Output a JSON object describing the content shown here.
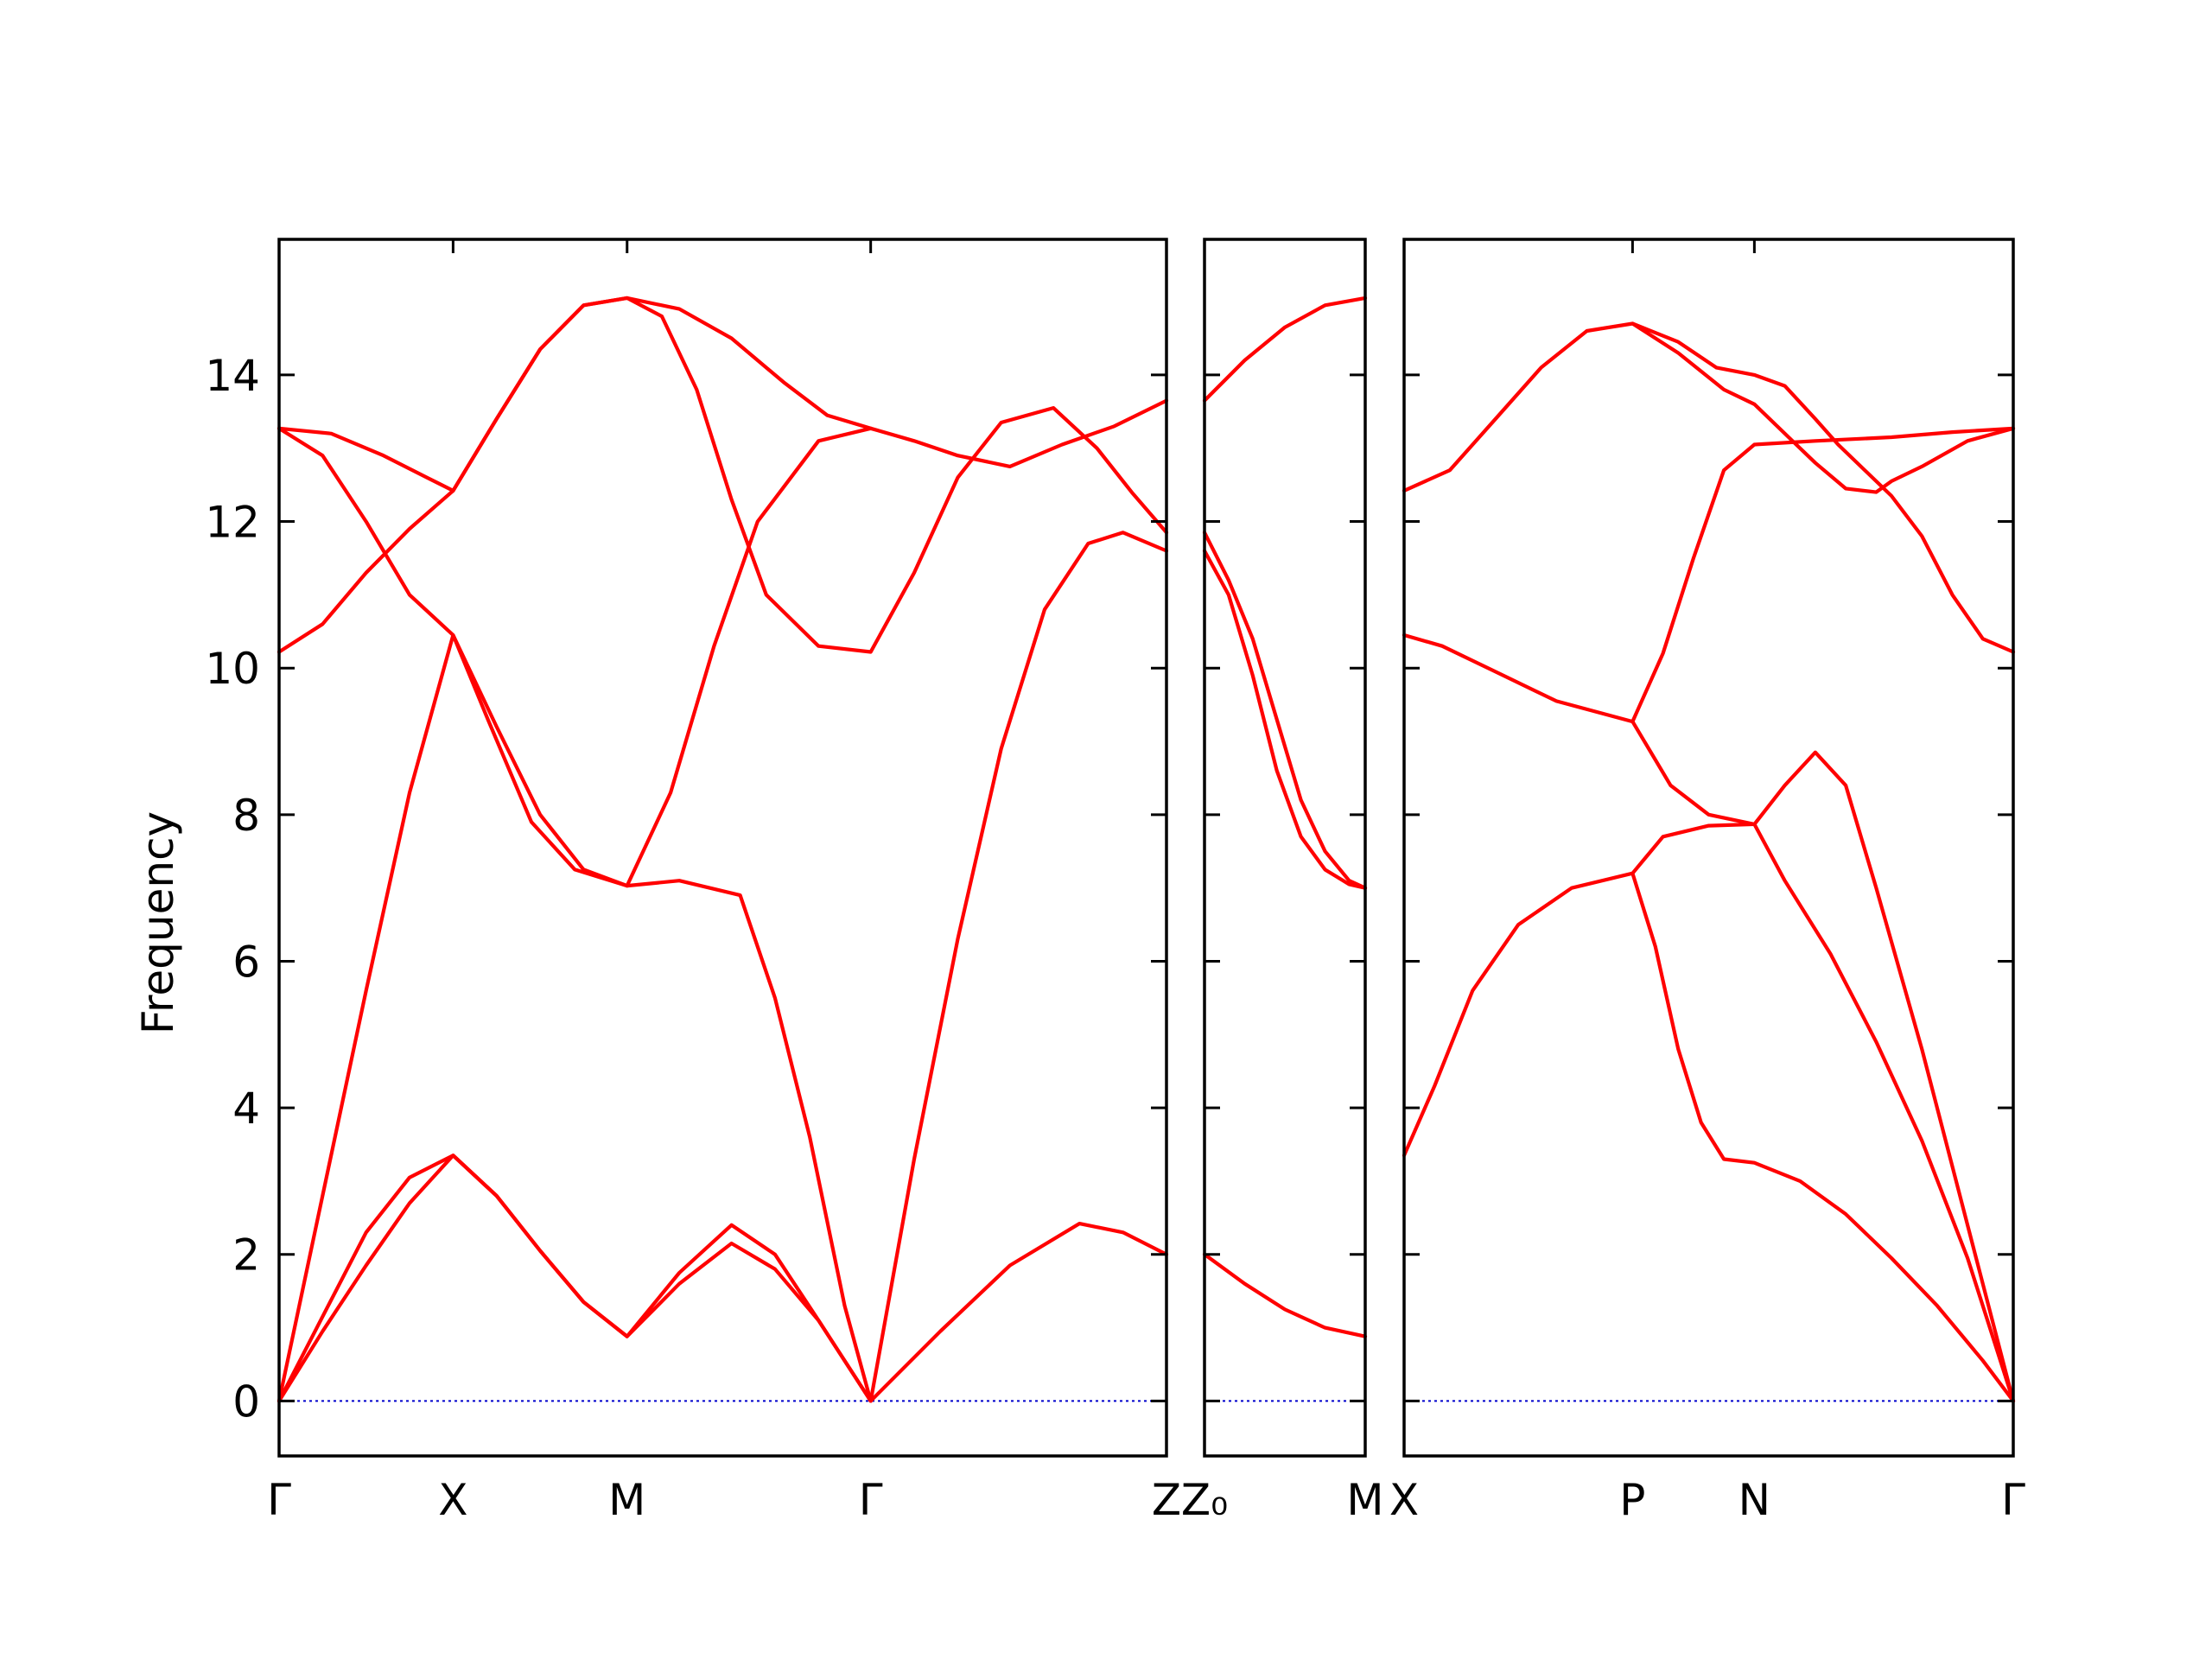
{
  "chart_data": {
    "type": "line",
    "ylabel": "Frequency",
    "ylim": [
      -0.75,
      15.85
    ],
    "yticks": [
      0,
      2,
      4,
      6,
      8,
      10,
      12,
      14
    ],
    "band_color": "#ff0000",
    "zero_line_color": "#0000cc",
    "panels": [
      {
        "name": "panel-1",
        "xlim": [
          0,
          5.1
        ],
        "xticks": [
          {
            "pos": 0,
            "label": "Γ"
          },
          {
            "pos": 1,
            "label": "X"
          },
          {
            "pos": 2,
            "label": "M"
          },
          {
            "pos": 3.4,
            "label": "Γ"
          },
          {
            "pos": 5.1,
            "label": "Z"
          }
        ],
        "series": [
          {
            "points": [
              [
                0,
                0
              ],
              [
                0.25,
                0.95
              ],
              [
                0.5,
                1.85
              ],
              [
                0.75,
                2.7
              ],
              [
                1,
                3.35
              ],
              [
                1.25,
                2.8
              ],
              [
                1.5,
                2.05
              ],
              [
                1.75,
                1.35
              ],
              [
                2,
                0.88
              ],
              [
                2.3,
                1.6
              ],
              [
                2.6,
                2.15
              ],
              [
                2.85,
                1.8
              ],
              [
                3.1,
                1.1
              ],
              [
                3.4,
                0
              ],
              [
                3.8,
                0.95
              ],
              [
                4.2,
                1.85
              ],
              [
                4.6,
                2.42
              ],
              [
                4.85,
                2.3
              ],
              [
                5.1,
                2.0
              ]
            ]
          },
          {
            "points": [
              [
                0,
                0
              ],
              [
                0.25,
                1.15
              ],
              [
                0.5,
                2.3
              ],
              [
                0.75,
                3.05
              ],
              [
                1,
                3.35
              ],
              [
                1.25,
                2.8
              ],
              [
                1.5,
                2.05
              ],
              [
                1.75,
                1.35
              ],
              [
                2,
                0.88
              ],
              [
                2.3,
                1.75
              ],
              [
                2.6,
                2.4
              ],
              [
                2.85,
                2.0
              ],
              [
                3.1,
                1.1
              ],
              [
                3.4,
                0
              ]
            ]
          },
          {
            "points": [
              [
                0,
                0
              ],
              [
                0.25,
                2.8
              ],
              [
                0.5,
                5.6
              ],
              [
                0.75,
                8.3
              ],
              [
                1,
                10.45
              ],
              [
                1.2,
                9.3
              ],
              [
                1.45,
                7.9
              ],
              [
                1.7,
                7.25
              ],
              [
                2,
                7.03
              ],
              [
                2.3,
                7.1
              ],
              [
                2.65,
                6.9
              ],
              [
                2.85,
                5.5
              ],
              [
                3.05,
                3.6
              ],
              [
                3.25,
                1.3
              ],
              [
                3.4,
                0
              ]
            ]
          },
          {
            "points": [
              [
                3.4,
                0
              ],
              [
                3.65,
                3.3
              ],
              [
                3.9,
                6.3
              ],
              [
                4.15,
                8.9
              ],
              [
                4.4,
                10.8
              ],
              [
                4.65,
                11.7
              ],
              [
                4.85,
                11.85
              ],
              [
                5.1,
                11.6
              ]
            ]
          },
          {
            "points": [
              [
                0,
                13.27
              ],
              [
                0.25,
                12.9
              ],
              [
                0.5,
                12.0
              ],
              [
                0.75,
                11.0
              ],
              [
                1,
                10.45
              ],
              [
                1.25,
                9.2
              ],
              [
                1.5,
                8.0
              ],
              [
                1.75,
                7.25
              ],
              [
                2,
                7.03
              ],
              [
                2.25,
                8.3
              ],
              [
                2.5,
                10.3
              ],
              [
                2.75,
                12.0
              ],
              [
                3.1,
                13.1
              ],
              [
                3.4,
                13.27
              ],
              [
                3.65,
                13.1
              ],
              [
                3.9,
                12.9
              ],
              [
                4.2,
                12.75
              ],
              [
                4.5,
                13.05
              ],
              [
                4.8,
                13.3
              ],
              [
                5.1,
                13.65
              ]
            ]
          },
          {
            "points": [
              [
                0,
                10.22
              ],
              [
                0.25,
                10.6
              ],
              [
                0.5,
                11.3
              ],
              [
                0.75,
                11.9
              ],
              [
                1,
                12.42
              ],
              [
                1.25,
                13.4
              ],
              [
                1.5,
                14.35
              ],
              [
                1.75,
                14.95
              ],
              [
                2,
                15.05
              ],
              [
                2.2,
                14.8
              ],
              [
                2.4,
                13.8
              ],
              [
                2.6,
                12.3
              ],
              [
                2.8,
                11.0
              ],
              [
                3.1,
                10.3
              ],
              [
                3.4,
                10.22
              ],
              [
                3.65,
                11.3
              ],
              [
                3.9,
                12.6
              ],
              [
                4.15,
                13.35
              ],
              [
                4.45,
                13.55
              ],
              [
                4.7,
                13.0
              ],
              [
                4.9,
                12.4
              ],
              [
                5.1,
                11.85
              ]
            ]
          },
          {
            "points": [
              [
                0,
                13.27
              ],
              [
                0.3,
                13.2
              ],
              [
                0.6,
                12.9
              ],
              [
                0.85,
                12.6
              ],
              [
                1,
                12.42
              ],
              [
                1.25,
                13.4
              ],
              [
                1.5,
                14.35
              ],
              [
                1.75,
                14.95
              ],
              [
                2,
                15.05
              ],
              [
                2.3,
                14.9
              ],
              [
                2.6,
                14.5
              ],
              [
                2.9,
                13.9
              ],
              [
                3.15,
                13.45
              ],
              [
                3.4,
                13.27
              ]
            ]
          }
        ]
      },
      {
        "name": "panel-2",
        "xlim": [
          0,
          1
        ],
        "xticks": [
          {
            "pos": 0,
            "label": "Z₀"
          },
          {
            "pos": 1,
            "label": "M"
          }
        ],
        "series": [
          {
            "points": [
              [
                0,
                13.65
              ],
              [
                0.25,
                14.2
              ],
              [
                0.5,
                14.65
              ],
              [
                0.75,
                14.95
              ],
              [
                1,
                15.05
              ]
            ]
          },
          {
            "points": [
              [
                0,
                11.85
              ],
              [
                0.15,
                11.2
              ],
              [
                0.3,
                10.4
              ],
              [
                0.45,
                9.3
              ],
              [
                0.6,
                8.2
              ],
              [
                0.75,
                7.5
              ],
              [
                0.9,
                7.1
              ],
              [
                1,
                7.0
              ]
            ]
          },
          {
            "points": [
              [
                0,
                11.6
              ],
              [
                0.15,
                11.0
              ],
              [
                0.3,
                9.9
              ],
              [
                0.45,
                8.6
              ],
              [
                0.6,
                7.7
              ],
              [
                0.75,
                7.25
              ],
              [
                0.9,
                7.05
              ],
              [
                1,
                7.0
              ]
            ]
          },
          {
            "points": [
              [
                0,
                2.0
              ],
              [
                0.25,
                1.6
              ],
              [
                0.5,
                1.25
              ],
              [
                0.75,
                1.0
              ],
              [
                1,
                0.88
              ]
            ]
          }
        ]
      },
      {
        "name": "panel-3",
        "xlim": [
          0,
          4
        ],
        "xticks": [
          {
            "pos": 0,
            "label": "X"
          },
          {
            "pos": 1.5,
            "label": "P"
          },
          {
            "pos": 2.3,
            "label": "N"
          },
          {
            "pos": 4,
            "label": "Γ"
          }
        ],
        "series": [
          {
            "points": [
              [
                0,
                3.35
              ],
              [
                0.2,
                4.3
              ],
              [
                0.45,
                5.6
              ],
              [
                0.75,
                6.5
              ],
              [
                1.1,
                7.0
              ],
              [
                1.5,
                7.2
              ],
              [
                1.7,
                7.7
              ],
              [
                2.0,
                7.85
              ],
              [
                2.3,
                7.87
              ],
              [
                2.5,
                8.4
              ],
              [
                2.7,
                8.85
              ],
              [
                2.9,
                8.4
              ],
              [
                3.1,
                7.0
              ],
              [
                3.4,
                4.8
              ],
              [
                3.7,
                2.4
              ],
              [
                4,
                0
              ]
            ]
          },
          {
            "points": [
              [
                1.5,
                7.2
              ],
              [
                1.65,
                6.2
              ],
              [
                1.8,
                4.8
              ],
              [
                1.95,
                3.8
              ],
              [
                2.1,
                3.3
              ],
              [
                2.3,
                3.25
              ],
              [
                2.6,
                3.0
              ],
              [
                2.9,
                2.55
              ],
              [
                3.2,
                1.95
              ],
              [
                3.5,
                1.3
              ],
              [
                3.8,
                0.55
              ],
              [
                4,
                0
              ]
            ]
          },
          {
            "points": [
              [
                2.3,
                7.87
              ],
              [
                2.5,
                7.1
              ],
              [
                2.8,
                6.1
              ],
              [
                3.1,
                4.9
              ],
              [
                3.4,
                3.55
              ],
              [
                3.7,
                1.95
              ],
              [
                4,
                0
              ]
            ]
          },
          {
            "points": [
              [
                0,
                10.45
              ],
              [
                0.25,
                10.3
              ],
              [
                0.6,
                9.95
              ],
              [
                1.0,
                9.55
              ],
              [
                1.5,
                9.27
              ],
              [
                1.75,
                8.4
              ],
              [
                2.0,
                8.0
              ],
              [
                2.3,
                7.87
              ]
            ]
          },
          {
            "points": [
              [
                1.5,
                9.27
              ],
              [
                1.7,
                10.2
              ],
              [
                1.9,
                11.5
              ],
              [
                2.1,
                12.7
              ],
              [
                2.3,
                13.05
              ],
              [
                2.7,
                13.1
              ],
              [
                3.2,
                13.15
              ],
              [
                3.6,
                13.22
              ],
              [
                4,
                13.27
              ]
            ]
          },
          {
            "points": [
              [
                0,
                12.42
              ],
              [
                0.3,
                12.7
              ],
              [
                0.6,
                13.4
              ],
              [
                0.9,
                14.1
              ],
              [
                1.2,
                14.6
              ],
              [
                1.5,
                14.7
              ],
              [
                1.8,
                14.45
              ],
              [
                2.05,
                14.1
              ],
              [
                2.3,
                14.0
              ],
              [
                2.5,
                13.85
              ],
              [
                2.7,
                13.4
              ],
              [
                2.85,
                13.05
              ],
              [
                3.2,
                12.35
              ],
              [
                3.4,
                11.8
              ],
              [
                3.6,
                11.0
              ],
              [
                3.8,
                10.4
              ],
              [
                4,
                10.22
              ]
            ]
          },
          {
            "points": [
              [
                1.5,
                14.7
              ],
              [
                1.8,
                14.3
              ],
              [
                2.1,
                13.8
              ],
              [
                2.3,
                13.6
              ],
              [
                2.5,
                13.2
              ],
              [
                2.7,
                12.8
              ],
              [
                2.9,
                12.45
              ],
              [
                3.1,
                12.4
              ],
              [
                3.2,
                12.55
              ],
              [
                3.4,
                12.75
              ],
              [
                3.7,
                13.1
              ],
              [
                4,
                13.27
              ]
            ]
          }
        ]
      }
    ]
  }
}
